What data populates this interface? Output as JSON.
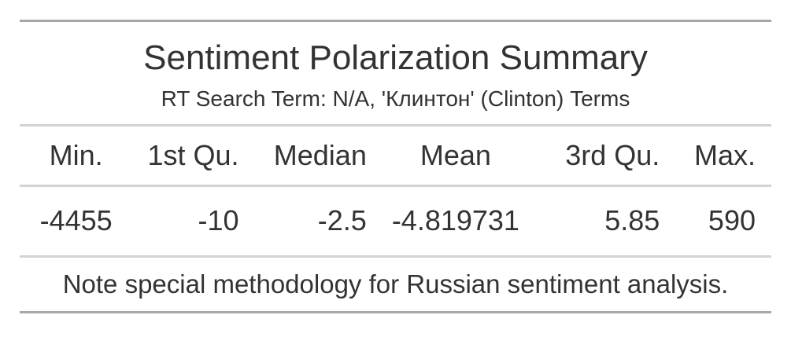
{
  "table": {
    "title": "Sentiment Polarization Summary",
    "subtitle": "RT Search Term: N/A, 'Клинтон' (Clinton) Terms",
    "columns": [
      "Min.",
      "1st Qu.",
      "Median",
      "Mean",
      "3rd Qu.",
      "Max."
    ],
    "rows": [
      [
        "-4455",
        "-10",
        "-2.5",
        "-4.819731",
        "5.85",
        "590"
      ]
    ],
    "footnote": "Note special methodology for Russian sentiment analysis.",
    "colors": {
      "text": "#333333",
      "outer_rule": "#a8a8a8",
      "inner_rule": "#d3d3d3"
    }
  }
}
